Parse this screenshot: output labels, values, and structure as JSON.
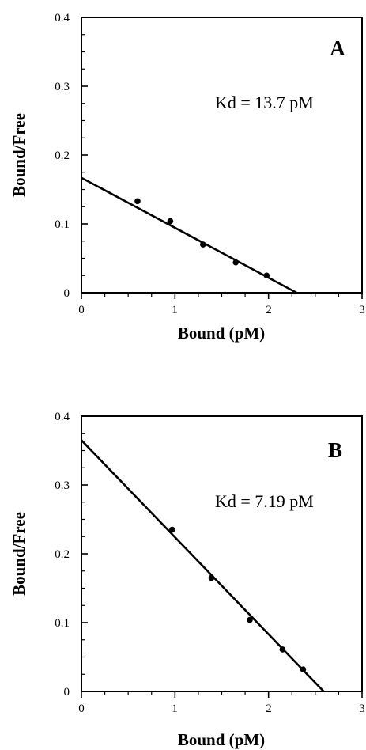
{
  "chart_data": [
    {
      "type": "scatter",
      "panel_label": "A",
      "annotation": "Kd = 13.7 pM",
      "xlabel": "Bound (pM)",
      "ylabel": "Bound/Free",
      "xlim": [
        0,
        3
      ],
      "ylim": [
        0,
        0.4
      ],
      "xticks": [
        "0",
        "1",
        "2",
        "3"
      ],
      "yticks": [
        "0",
        "0.1",
        "0.2",
        "0.3",
        "0.4"
      ],
      "points": {
        "x": [
          0.6,
          0.95,
          1.3,
          1.65,
          1.98
        ],
        "y": [
          0.133,
          0.104,
          0.07,
          0.044,
          0.025
        ]
      },
      "fit_line": {
        "x": [
          0,
          2.3
        ],
        "y": [
          0.167,
          0
        ]
      },
      "grid": false
    },
    {
      "type": "scatter",
      "panel_label": "B",
      "annotation": "Kd = 7.19 pM",
      "xlabel": "Bound (pM)",
      "ylabel": "Bound/Free",
      "xlim": [
        0,
        3
      ],
      "ylim": [
        0,
        0.4
      ],
      "xticks": [
        "0",
        "1",
        "2",
        "3"
      ],
      "yticks": [
        "0",
        "0.1",
        "0.2",
        "0.3",
        "0.4"
      ],
      "points": {
        "x": [
          0.97,
          1.39,
          1.8,
          2.15,
          2.37
        ],
        "y": [
          0.235,
          0.165,
          0.104,
          0.061,
          0.032
        ]
      },
      "fit_line": {
        "x": [
          0,
          2.59
        ],
        "y": [
          0.365,
          0
        ]
      },
      "grid": false
    }
  ]
}
